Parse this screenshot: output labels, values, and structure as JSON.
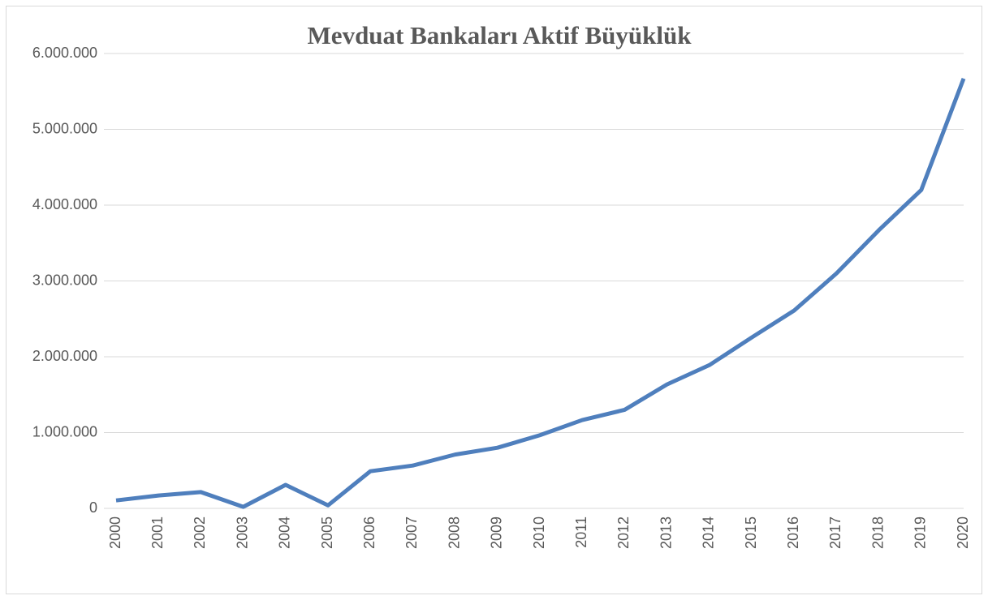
{
  "chart_data": {
    "type": "line",
    "title": "Mevduat Bankaları Aktif Büyüklük",
    "categories": [
      "2000",
      "2001",
      "2002",
      "2003",
      "2004",
      "2005",
      "2006",
      "2007",
      "2008",
      "2009",
      "2010",
      "2011",
      "2012",
      "2013",
      "2014",
      "2015",
      "2016",
      "2017",
      "2018",
      "2019",
      "2020"
    ],
    "series": [
      {
        "name": "Mevduat Bankaları Aktif Büyüklük",
        "color": "#4f7fbd",
        "values": [
          105000,
          170000,
          215000,
          20000,
          310000,
          40000,
          490000,
          565000,
          710000,
          800000,
          965000,
          1165000,
          1300000,
          1635000,
          1890000,
          2255000,
          2610000,
          3100000,
          3670000,
          4200000,
          5670000
        ]
      }
    ],
    "ylim": [
      0,
      6000000
    ],
    "yticks": [
      0,
      {
        "value": 1000000,
        "label": "1.000.000"
      },
      {
        "value": 2000000,
        "label": "2.000.000"
      },
      {
        "value": 3000000,
        "label": "3.000.000"
      },
      {
        "value": 4000000,
        "label": "4.000.000"
      },
      {
        "value": 5000000,
        "label": "5.000.000"
      },
      {
        "value": 6000000,
        "label": "6.000.000"
      }
    ],
    "grid": true
  }
}
